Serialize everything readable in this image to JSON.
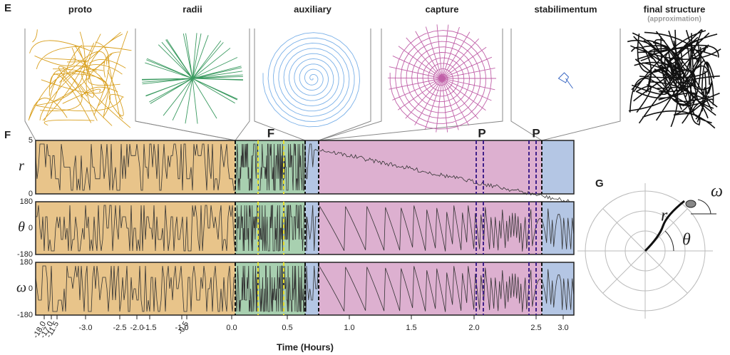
{
  "panel_labels": {
    "e": "E",
    "f": "F",
    "g": "G"
  },
  "stages": [
    {
      "title": "proto"
    },
    {
      "title": "radii"
    },
    {
      "title": "auxiliary"
    },
    {
      "title": "capture"
    },
    {
      "title": "stabilimentum"
    },
    {
      "title": "final structure",
      "subtitle": "(approximation)"
    }
  ],
  "markers": [
    "F",
    "P",
    "P"
  ],
  "rows": [
    {
      "label": "r",
      "ticks": [
        "5",
        "0"
      ]
    },
    {
      "label": "θ",
      "ticks": [
        "180",
        "0",
        "-180"
      ]
    },
    {
      "label": "ω",
      "ticks": [
        "180",
        "0",
        "-180"
      ]
    }
  ],
  "x_ticks": [
    "-18.0",
    "-17.0",
    "-11.5",
    "-3.0",
    "-2.5",
    "-2.0",
    "-1.5",
    "-1.0",
    "-0.5",
    "0.0",
    "0.5",
    "1.0",
    "1.5",
    "2.0",
    "2.5",
    "3.0"
  ],
  "x_label": "Time (Hours)",
  "diagram": {
    "r": "r",
    "theta": "θ",
    "omega": "ω"
  }
}
